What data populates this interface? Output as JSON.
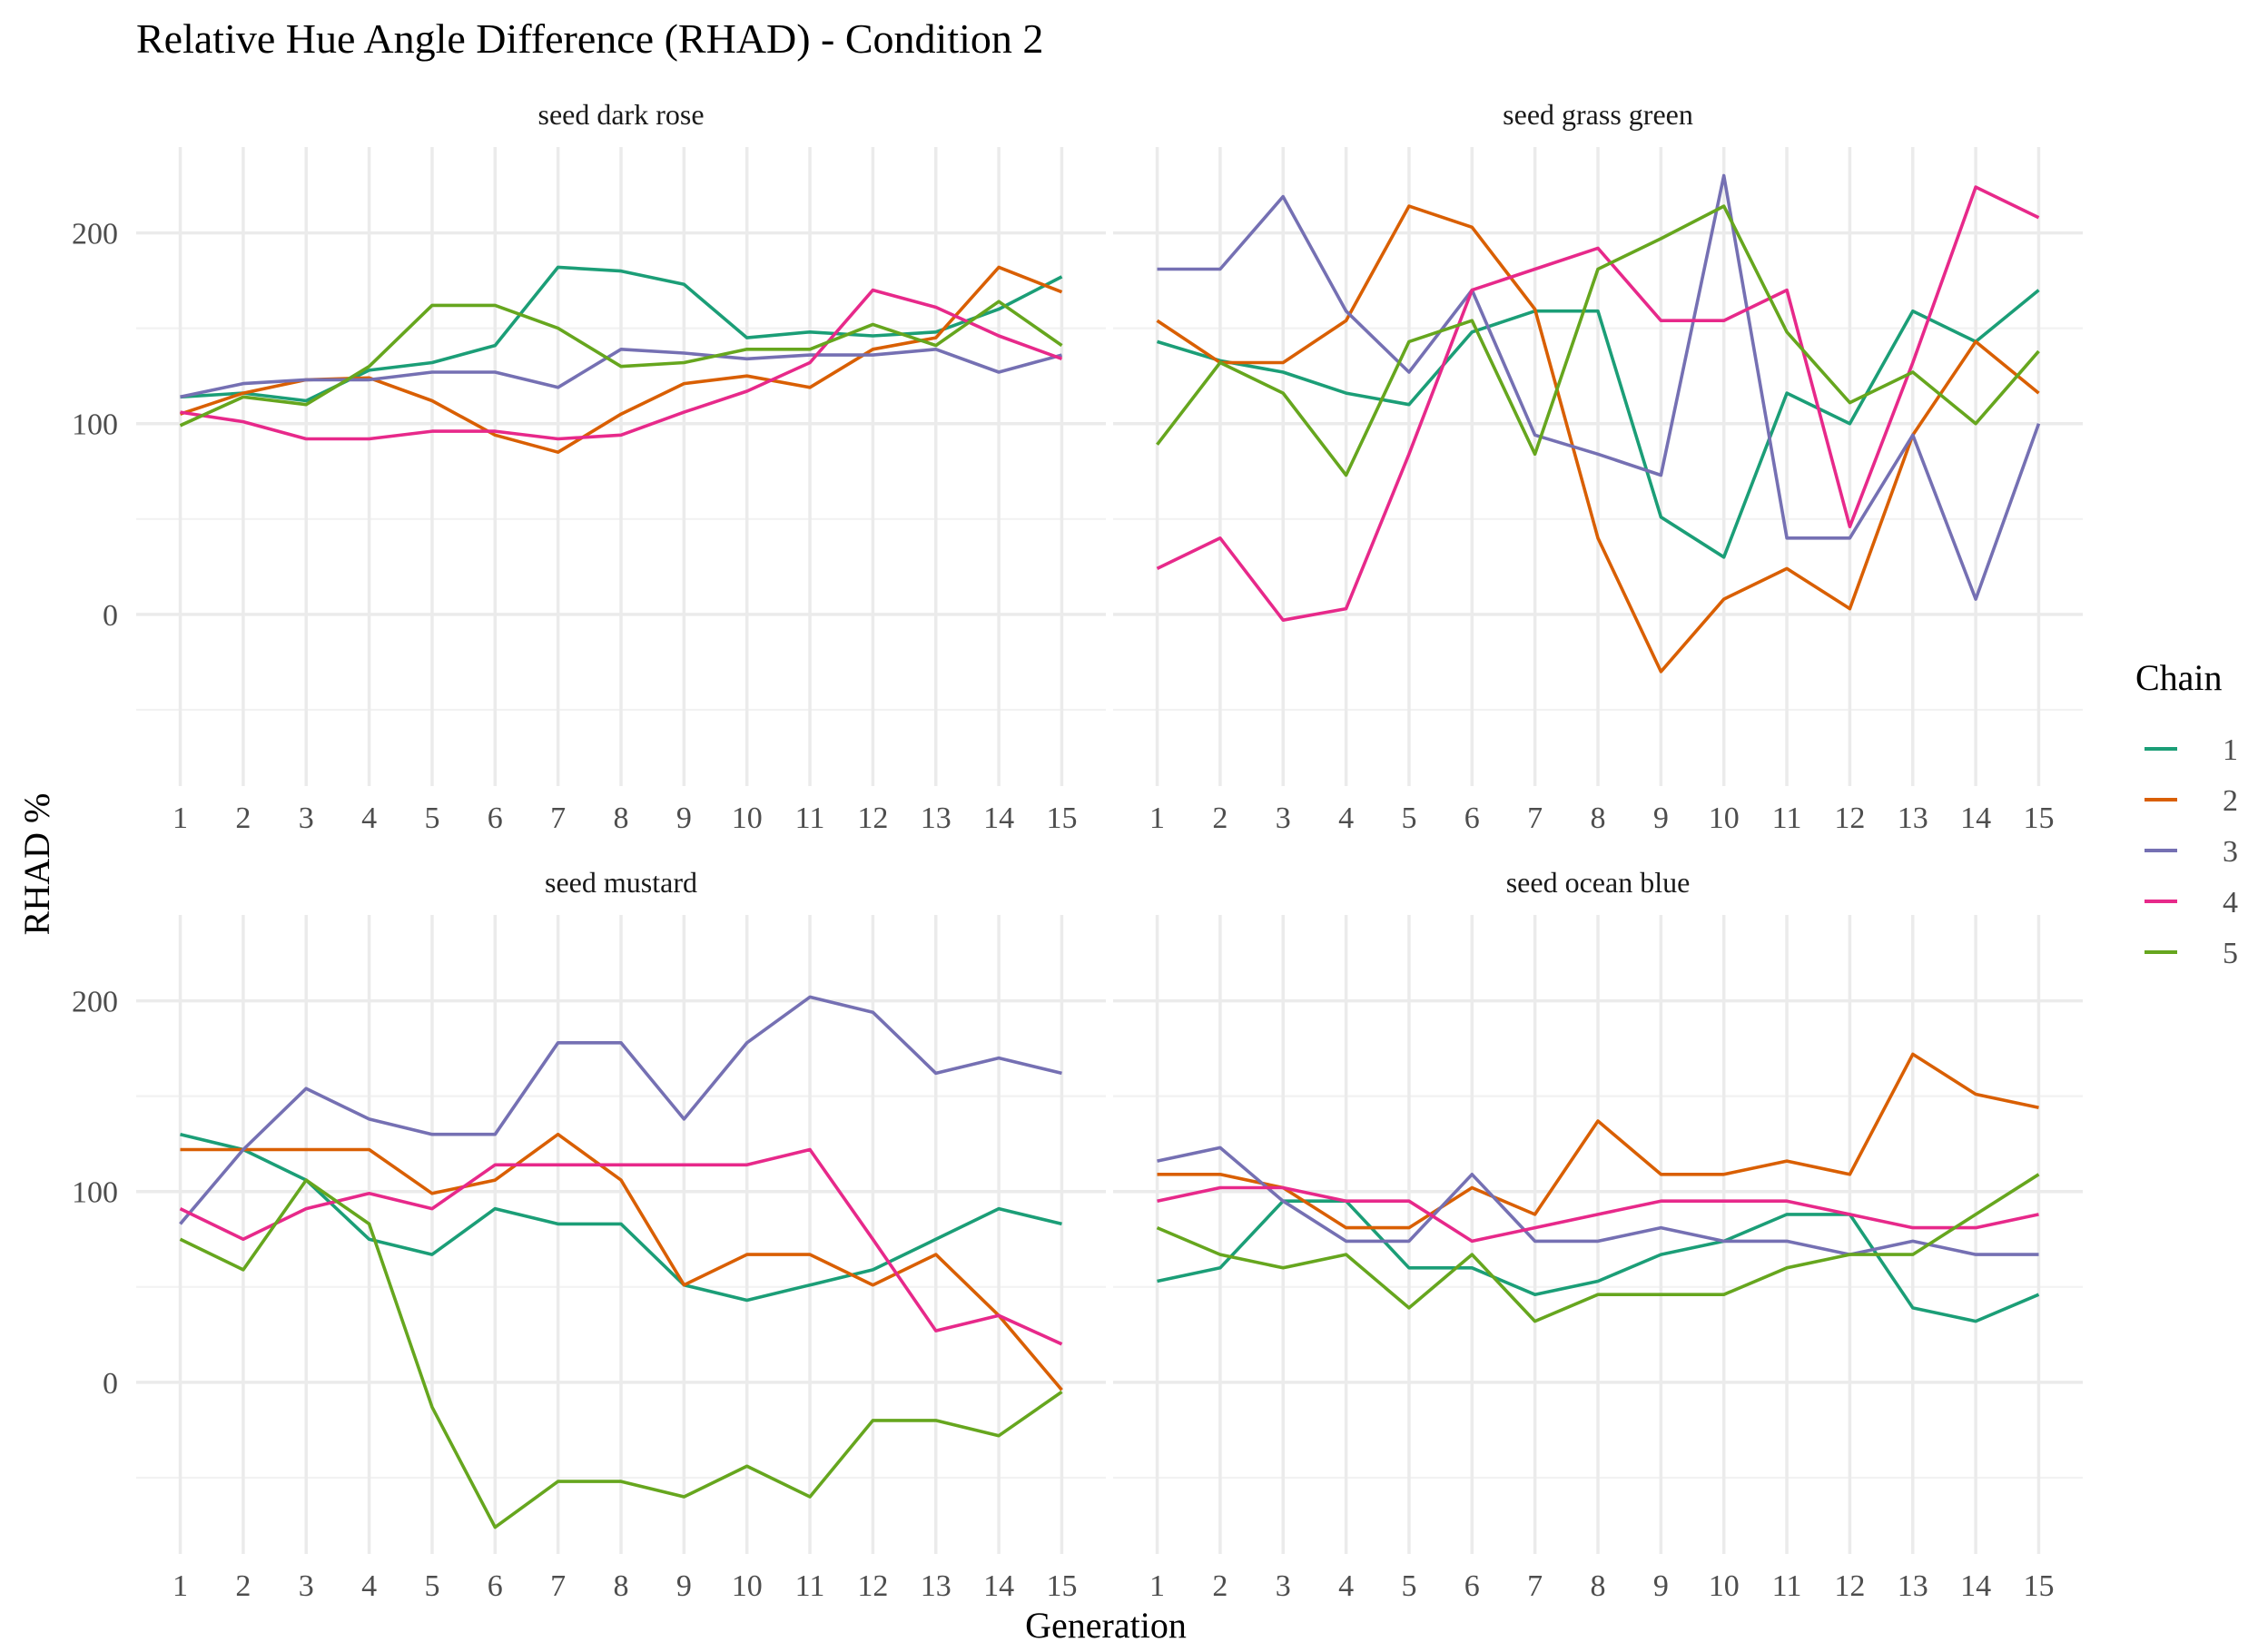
{
  "chart_data": {
    "type": "line",
    "title": "Relative Hue Angle Difference (RHAD) - Condition 2",
    "xlabel": "Generation",
    "ylabel": "RHAD %",
    "x": [
      1,
      2,
      3,
      4,
      5,
      6,
      7,
      8,
      9,
      10,
      11,
      12,
      13,
      14,
      15
    ],
    "ylim": [
      -90,
      245
    ],
    "yticks": [
      0,
      100,
      200
    ],
    "grid": true,
    "legend": {
      "title": "Chain",
      "position": "right",
      "entries": [
        "1",
        "2",
        "3",
        "4",
        "5"
      ]
    },
    "colors": {
      "1": "#1b9e77",
      "2": "#d95f02",
      "3": "#7570b3",
      "4": "#e7298a",
      "5": "#66a61e"
    },
    "panels": [
      {
        "label": "seed dark rose",
        "series": [
          {
            "name": "1",
            "values": [
              114,
              116,
              112,
              128,
              132,
              141,
              182,
              180,
              173,
              145,
              148,
              146,
              148,
              160,
              177
            ]
          },
          {
            "name": "2",
            "values": [
              105,
              116,
              123,
              124,
              112,
              94,
              85,
              105,
              121,
              125,
              119,
              139,
              145,
              182,
              169
            ]
          },
          {
            "name": "3",
            "values": [
              114,
              121,
              123,
              123,
              127,
              127,
              119,
              139,
              137,
              134,
              136,
              136,
              139,
              127,
              136
            ]
          },
          {
            "name": "4",
            "values": [
              106,
              101,
              92,
              92,
              96,
              96,
              92,
              94,
              106,
              117,
              132,
              170,
              161,
              146,
              134
            ]
          },
          {
            "name": "5",
            "values": [
              99,
              114,
              110,
              130,
              162,
              162,
              150,
              130,
              132,
              139,
              139,
              152,
              141,
              164,
              141
            ]
          }
        ]
      },
      {
        "label": "seed grass green",
        "series": [
          {
            "name": "1",
            "values": [
              143,
              133,
              127,
              116,
              110,
              148,
              159,
              159,
              51,
              30,
              116,
              100,
              159,
              143,
              170
            ]
          },
          {
            "name": "2",
            "values": [
              154,
              132,
              132,
              154,
              214,
              203,
              160,
              40,
              -30,
              8,
              24,
              3,
              94,
              143,
              116
            ]
          },
          {
            "name": "3",
            "values": [
              181,
              181,
              219,
              159,
              127,
              170,
              94,
              84,
              73,
              230,
              40,
              40,
              94,
              8,
              100
            ]
          },
          {
            "name": "4",
            "values": [
              24,
              40,
              -3,
              3,
              84,
              170,
              181,
              192,
              154,
              154,
              170,
              46,
              132,
              224,
              208
            ]
          },
          {
            "name": "5",
            "values": [
              89,
              132,
              116,
              73,
              143,
              154,
              84,
              181,
              197,
              214,
              148,
              111,
              127,
              100,
              138
            ]
          }
        ]
      },
      {
        "label": "seed mustard",
        "series": [
          {
            "name": "1",
            "values": [
              130,
              122,
              106,
              75,
              67,
              91,
              83,
              83,
              51,
              43,
              51,
              59,
              75,
              91,
              83
            ]
          },
          {
            "name": "2",
            "values": [
              122,
              122,
              122,
              122,
              99,
              106,
              130,
              106,
              51,
              67,
              67,
              51,
              67,
              35,
              -4
            ]
          },
          {
            "name": "3",
            "values": [
              83,
              122,
              154,
              138,
              130,
              130,
              178,
              178,
              138,
              178,
              202,
              194,
              162,
              170,
              162
            ]
          },
          {
            "name": "4",
            "values": [
              91,
              75,
              91,
              99,
              91,
              114,
              114,
              114,
              114,
              114,
              122,
              75,
              27,
              35,
              20
            ]
          },
          {
            "name": "5",
            "values": [
              75,
              59,
              106,
              83,
              -13,
              -76,
              -52,
              -52,
              -60,
              -44,
              -60,
              -20,
              -20,
              -28,
              -5
            ]
          }
        ]
      },
      {
        "label": "seed ocean blue",
        "series": [
          {
            "name": "1",
            "values": [
              53,
              60,
              95,
              95,
              60,
              60,
              46,
              53,
              67,
              74,
              88,
              88,
              39,
              32,
              46
            ]
          },
          {
            "name": "2",
            "values": [
              109,
              109,
              102,
              81,
              81,
              102,
              88,
              137,
              109,
              109,
              116,
              109,
              172,
              151,
              144
            ]
          },
          {
            "name": "3",
            "values": [
              116,
              123,
              95,
              74,
              74,
              109,
              74,
              74,
              81,
              74,
              74,
              67,
              74,
              67,
              67
            ]
          },
          {
            "name": "4",
            "values": [
              95,
              102,
              102,
              95,
              95,
              74,
              81,
              88,
              95,
              95,
              95,
              88,
              81,
              81,
              88
            ]
          },
          {
            "name": "5",
            "values": [
              81,
              67,
              60,
              67,
              39,
              67,
              32,
              46,
              46,
              46,
              60,
              67,
              67,
              88,
              109
            ]
          }
        ]
      }
    ]
  }
}
